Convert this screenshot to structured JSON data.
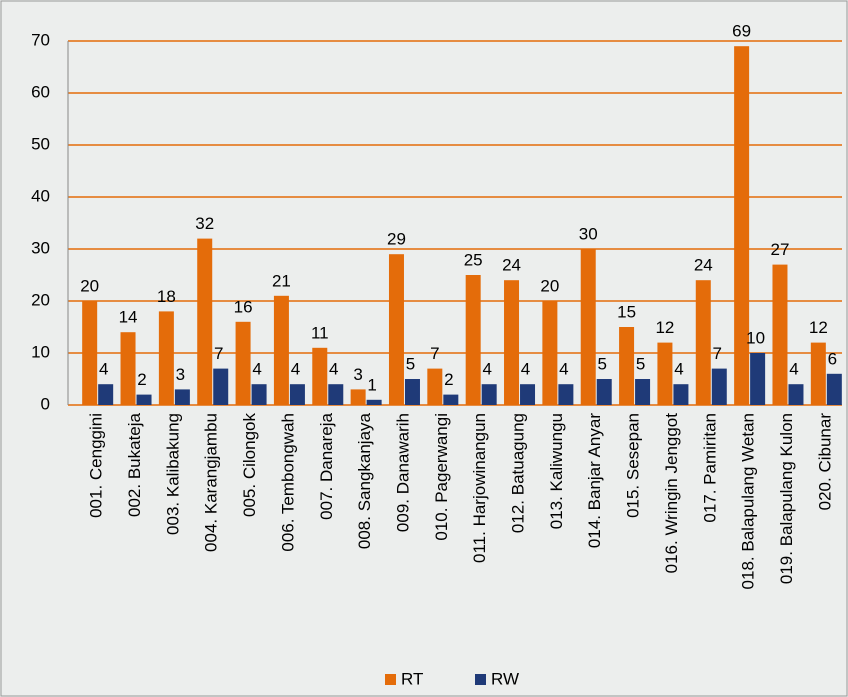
{
  "chart_data": {
    "type": "bar",
    "categories": [
      "001. Cenggini",
      "002. Bukateja",
      "003. Kalibakung",
      "004. Karangjambu",
      "005. Cilongok",
      "006. Tembongwah",
      "007. Danareja",
      "008. Sangkanjaya",
      "009. Danawarih",
      "010. Pagerwangi",
      "011. Harjowinangun",
      "012. Batuagung",
      "013. Kaliwungu",
      "014. Banjar Anyar",
      "015. Sesepan",
      "016. Wringin Jenggot",
      "017. Pamiritan",
      "018. Balapulang Wetan",
      "019. Balapulang Kulon",
      "020. Cibunar"
    ],
    "series": [
      {
        "name": "RT",
        "color": "#e46c0a",
        "values": [
          20,
          14,
          18,
          32,
          16,
          21,
          11,
          3,
          29,
          7,
          25,
          24,
          20,
          30,
          15,
          12,
          24,
          69,
          27,
          12
        ]
      },
      {
        "name": "RW",
        "color": "#1f3a78",
        "values": [
          4,
          2,
          3,
          7,
          4,
          4,
          4,
          1,
          5,
          2,
          4,
          4,
          4,
          5,
          5,
          4,
          7,
          10,
          4,
          6
        ]
      }
    ],
    "ylim": [
      0,
      70
    ],
    "yticks": [
      0,
      10,
      20,
      30,
      40,
      50,
      60,
      70
    ],
    "grid": true,
    "legend": "bottom"
  }
}
